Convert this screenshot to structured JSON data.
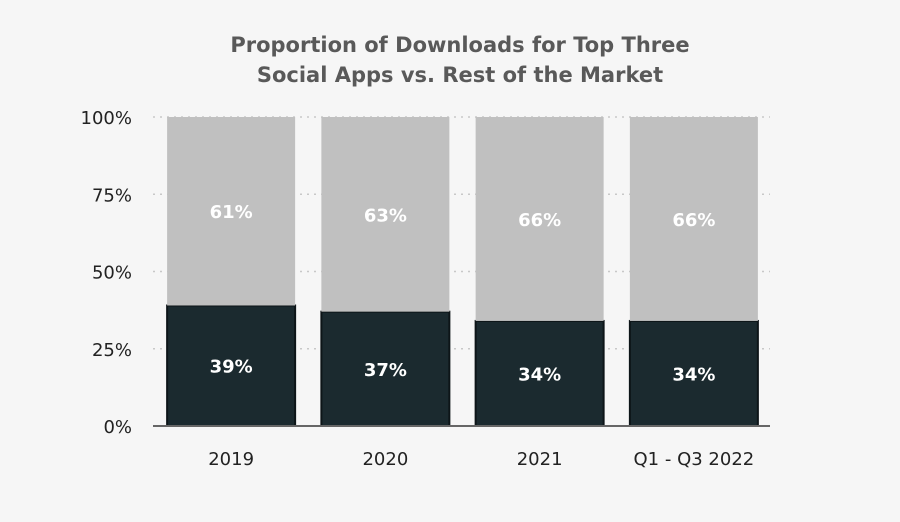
{
  "chart_data": {
    "type": "bar",
    "stacked": true,
    "title_lines": [
      "Proportion of Downloads for Top Three",
      "Social Apps vs. Rest of the Market"
    ],
    "title": "Proportion of Downloads for Top Three Social Apps vs. Rest of the Market",
    "xlabel": "",
    "ylabel": "",
    "categories": [
      "2019",
      "2020",
      "2021",
      "Q1 - Q3 2022"
    ],
    "series": [
      {
        "name": "Top Three Social Apps",
        "values": [
          39,
          37,
          34,
          34
        ],
        "labels": [
          "39%",
          "37%",
          "34%",
          "34%"
        ],
        "color": "#1b2a2f"
      },
      {
        "name": "Rest of the Market",
        "values": [
          61,
          63,
          66,
          66
        ],
        "labels": [
          "61%",
          "63%",
          "66%",
          "66%"
        ],
        "color": "#c0c0c0"
      }
    ],
    "ylim": [
      0,
      100
    ],
    "yticks": [
      0,
      25,
      50,
      75,
      100
    ],
    "ytick_labels": [
      "0%",
      "25%",
      "50%",
      "75%",
      "100%"
    ],
    "grid": "dotted horizontal",
    "legend": "none"
  }
}
